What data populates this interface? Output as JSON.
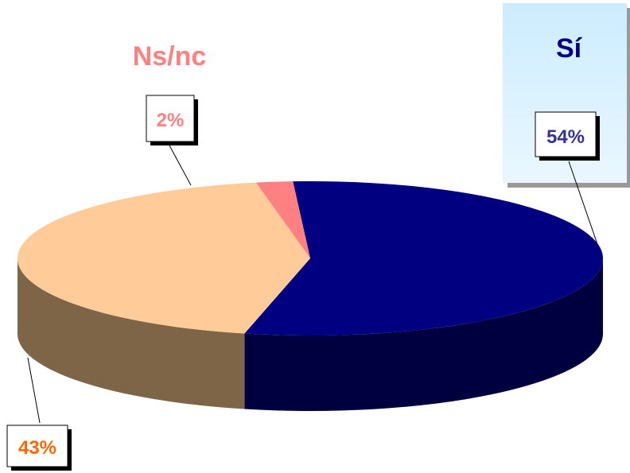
{
  "chart_data": {
    "type": "pie",
    "title": "",
    "slices": [
      {
        "label": "Sí",
        "value": 54,
        "value_label": "54%",
        "color": "#000080",
        "side_color": "#000040",
        "label_color": "#000080",
        "value_color": "#333399"
      },
      {
        "label": "",
        "value": 43,
        "value_label": "43%",
        "color": "#FFCC99",
        "side_color": "#7F6548",
        "label_color": "#FF6600",
        "value_color": "#FF6600"
      },
      {
        "label": "Ns/nc",
        "value": 2,
        "value_label": "2%",
        "color": "#FF8080",
        "side_color": "#7F4040",
        "label_color": "#FF8080",
        "value_color": "#FF8080"
      }
    ],
    "legend": {
      "placement": "top-right",
      "fill": "#CCECFF"
    },
    "style": "3d-pie"
  }
}
